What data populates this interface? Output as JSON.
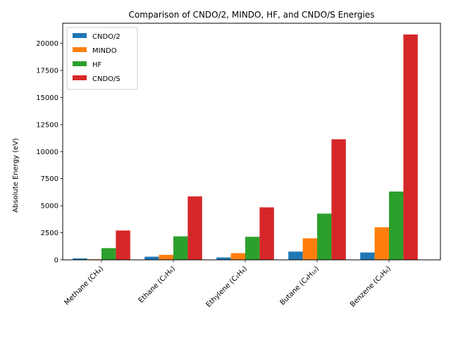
{
  "chart_data": {
    "type": "bar",
    "title": "Comparison of CNDO/2, MINDO, HF, and CNDO/S Energies",
    "xlabel": "",
    "ylabel": "Absolute Energy (eV)",
    "ylim": [
      0,
      21860
    ],
    "yticks": [
      0,
      2500,
      5000,
      7500,
      10000,
      12500,
      15000,
      17500,
      20000
    ],
    "categories": [
      "Methane (CH₄)",
      "Ethane (C₂H₆)",
      "Ethylene (C₂H₄)",
      "Butane (C₄H₁₀)",
      "Benzene (C₆H₆)"
    ],
    "series": [
      {
        "name": "CNDO/2",
        "color": "#1f77b4",
        "values": [
          130,
          290,
          220,
          760,
          680
        ]
      },
      {
        "name": "MINDO",
        "color": "#ff7f0e",
        "values": [
          60,
          460,
          620,
          1990,
          3010
        ]
      },
      {
        "name": "HF",
        "color": "#2ca02c",
        "values": [
          1080,
          2170,
          2130,
          4270,
          6310
        ]
      },
      {
        "name": "CNDO/S",
        "color": "#d62728",
        "values": [
          2710,
          5860,
          4850,
          11140,
          20820
        ]
      }
    ],
    "grid": false,
    "legend_position": "top-left"
  }
}
